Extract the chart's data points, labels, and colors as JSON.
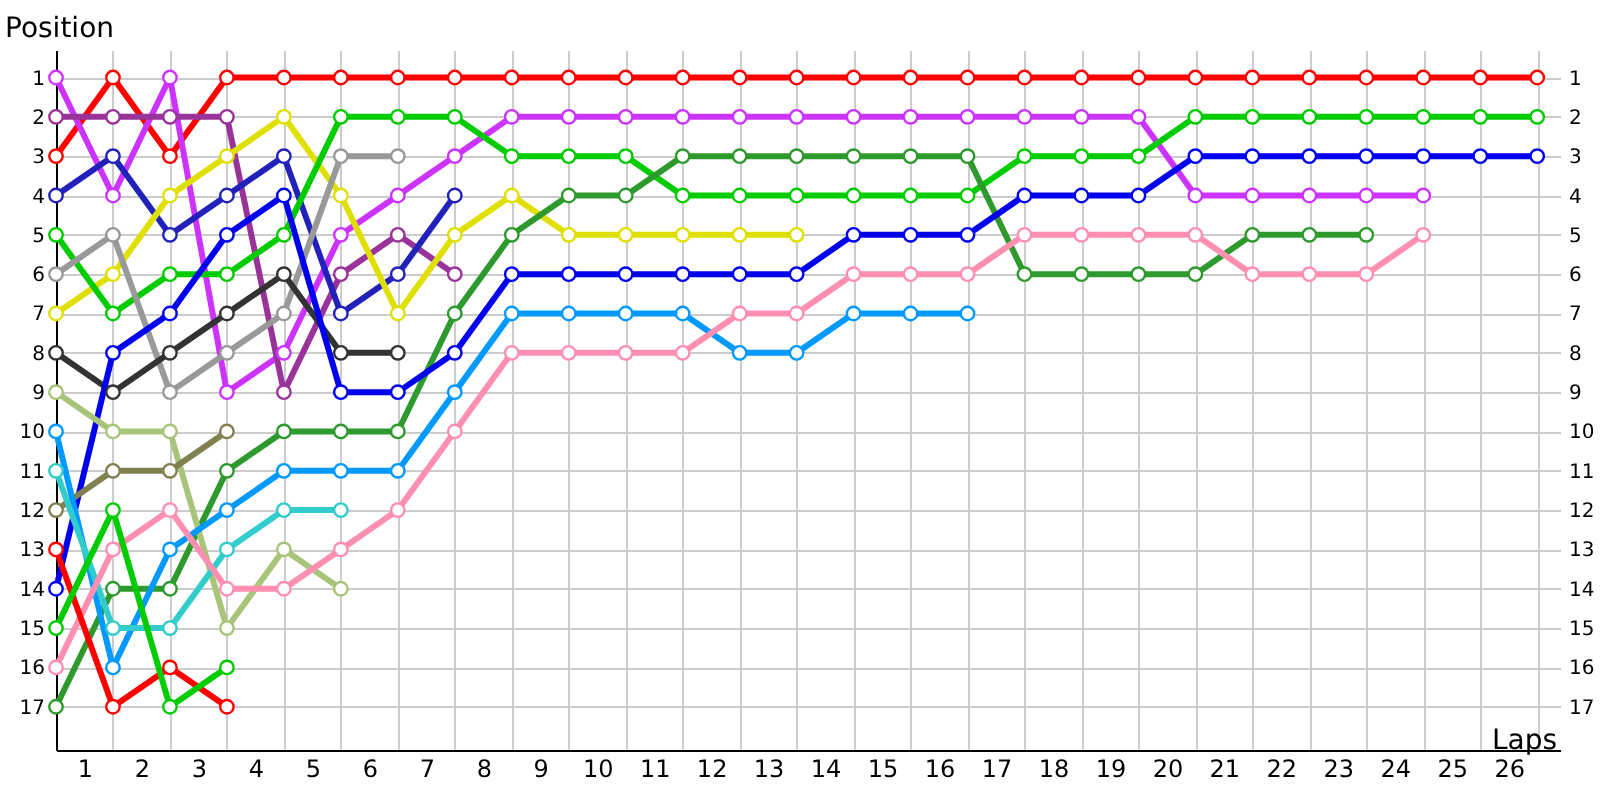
{
  "chart_data": {
    "type": "line",
    "xlabel": "Laps",
    "ylabel": "Position",
    "x": [
      0,
      1,
      2,
      3,
      4,
      5,
      6,
      7,
      8,
      9,
      10,
      11,
      12,
      13,
      14,
      15,
      16,
      17,
      18,
      19,
      20,
      21,
      22,
      23,
      24,
      25,
      26
    ],
    "xlim": [
      0,
      26.4
    ],
    "xticks": [
      {
        "value": 0,
        "label": null
      },
      {
        "value": 0.5,
        "label": "1"
      },
      {
        "value": 1,
        "label": null
      },
      {
        "value": 1.5,
        "label": "2"
      },
      {
        "value": 2,
        "label": null
      },
      {
        "value": 2.5,
        "label": "3"
      },
      {
        "value": 3,
        "label": null
      },
      {
        "value": 3.5,
        "label": "4"
      },
      {
        "value": 4,
        "label": null
      },
      {
        "value": 4.5,
        "label": "5"
      },
      {
        "value": 5,
        "label": null
      },
      {
        "value": 5.5,
        "label": "6"
      },
      {
        "value": 6,
        "label": null
      },
      {
        "value": 6.5,
        "label": "7"
      },
      {
        "value": 7,
        "label": null
      },
      {
        "value": 7.5,
        "label": "8"
      },
      {
        "value": 8,
        "label": null
      },
      {
        "value": 8.5,
        "label": "9"
      },
      {
        "value": 9,
        "label": null
      },
      {
        "value": 9.5,
        "label": "10"
      },
      {
        "value": 10,
        "label": null
      },
      {
        "value": 10.5,
        "label": "11"
      },
      {
        "value": 11,
        "label": null
      },
      {
        "value": 11.5,
        "label": "12"
      },
      {
        "value": 12,
        "label": null
      },
      {
        "value": 12.5,
        "label": "13"
      },
      {
        "value": 13,
        "label": null
      },
      {
        "value": 13.5,
        "label": "14"
      },
      {
        "value": 14,
        "label": null
      },
      {
        "value": 14.5,
        "label": "15"
      },
      {
        "value": 15,
        "label": null
      },
      {
        "value": 15.5,
        "label": "16"
      },
      {
        "value": 16,
        "label": null
      },
      {
        "value": 16.5,
        "label": "17"
      },
      {
        "value": 17,
        "label": null
      },
      {
        "value": 17.5,
        "label": "18"
      },
      {
        "value": 18,
        "label": null
      },
      {
        "value": 18.5,
        "label": "19"
      },
      {
        "value": 19,
        "label": null
      },
      {
        "value": 19.5,
        "label": "20"
      },
      {
        "value": 20,
        "label": null
      },
      {
        "value": 20.5,
        "label": "21"
      },
      {
        "value": 21,
        "label": null
      },
      {
        "value": 21.5,
        "label": "22"
      },
      {
        "value": 22,
        "label": null
      },
      {
        "value": 22.5,
        "label": "23"
      },
      {
        "value": 23,
        "label": null
      },
      {
        "value": 23.5,
        "label": "24"
      },
      {
        "value": 24,
        "label": null
      },
      {
        "value": 24.5,
        "label": "25"
      },
      {
        "value": 25,
        "label": null
      },
      {
        "value": 25.5,
        "label": "26"
      },
      {
        "value": 26,
        "label": null
      }
    ],
    "ylim": [
      18.1,
      0.3
    ],
    "yticks": [
      1,
      2,
      3,
      4,
      5,
      6,
      7,
      8,
      9,
      10,
      11,
      12,
      13,
      14,
      15,
      16,
      17
    ],
    "y2lim": [
      18.1,
      0.3
    ],
    "y2ticks": [
      1,
      2,
      3,
      4,
      5,
      6,
      7,
      8,
      9,
      10,
      11,
      12,
      13,
      14,
      15,
      16,
      17
    ],
    "grid": true,
    "legend": false,
    "marker": "circle",
    "line_style": "solid",
    "series": [
      {
        "color": "#ff0000",
        "values": [
          3,
          1,
          3,
          1,
          1,
          1,
          1,
          1,
          1,
          1,
          1,
          1,
          1,
          1,
          1,
          1,
          1,
          1,
          1,
          1,
          1,
          1,
          1,
          1,
          1,
          1,
          1
        ]
      },
      {
        "color": "#cc33ff",
        "values": [
          1,
          4,
          1,
          9,
          8,
          5,
          4,
          3,
          2,
          2,
          2,
          2,
          2,
          2,
          2,
          2,
          2,
          2,
          2,
          2,
          4,
          4,
          4,
          4,
          4,
          null,
          null
        ]
      },
      {
        "color": "#993399",
        "values": [
          2,
          2,
          2,
          2,
          9,
          6,
          5,
          6,
          null,
          null,
          null,
          null,
          null,
          null,
          null,
          null,
          null,
          null,
          null,
          null,
          null,
          null,
          null,
          null,
          null,
          null,
          null
        ]
      },
      {
        "color": "#2222bb",
        "values": [
          4,
          3,
          5,
          4,
          3,
          7,
          6,
          4,
          null,
          null,
          null,
          null,
          null,
          null,
          null,
          null,
          null,
          null,
          null,
          null,
          null,
          null,
          null,
          null,
          null,
          null,
          null
        ]
      },
      {
        "color": "#e0e000",
        "values": [
          7,
          6,
          4,
          3,
          2,
          4,
          7,
          5,
          4,
          5,
          5,
          5,
          5,
          5,
          null,
          null,
          null,
          null,
          null,
          null,
          null,
          null,
          null,
          null,
          null,
          null,
          null
        ]
      },
      {
        "color": "#00cc00",
        "values": [
          5,
          7,
          6,
          6,
          5,
          2,
          2,
          2,
          3,
          3,
          3,
          4,
          4,
          4,
          4,
          4,
          4,
          3,
          3,
          3,
          2,
          2,
          2,
          2,
          2,
          2,
          2
        ]
      },
      {
        "color": "#2e9a2e",
        "values": [
          17,
          14,
          14,
          11,
          10,
          10,
          10,
          7,
          5,
          4,
          4,
          3,
          3,
          3,
          3,
          3,
          3,
          6,
          6,
          6,
          6,
          5,
          5,
          5,
          null,
          null,
          null
        ]
      },
      {
        "color": "#999999",
        "values": [
          6,
          5,
          9,
          8,
          7,
          3,
          3,
          null,
          null,
          null,
          null,
          null,
          null,
          null,
          null,
          null,
          null,
          null,
          null,
          null,
          null,
          null,
          null,
          null,
          null,
          null,
          null
        ]
      },
      {
        "color": "#333333",
        "values": [
          8,
          9,
          8,
          7,
          6,
          8,
          8,
          null,
          null,
          null,
          null,
          null,
          null,
          null,
          null,
          null,
          null,
          null,
          null,
          null,
          null,
          null,
          null,
          null,
          null,
          null,
          null
        ]
      },
      {
        "color": "#0000ee",
        "values": [
          14,
          8,
          7,
          5,
          4,
          9,
          9,
          8,
          6,
          6,
          6,
          6,
          6,
          6,
          5,
          5,
          5,
          4,
          4,
          4,
          3,
          3,
          3,
          3,
          3,
          3,
          3
        ]
      },
      {
        "color": "#a8c47a",
        "values": [
          9,
          10,
          10,
          15,
          13,
          14,
          null,
          null,
          null,
          null,
          null,
          null,
          null,
          null,
          null,
          null,
          null,
          null,
          null,
          null,
          null,
          null,
          null,
          null,
          null,
          null,
          null
        ]
      },
      {
        "color": "#808050",
        "values": [
          12,
          11,
          11,
          10,
          null,
          null,
          null,
          null,
          null,
          null,
          null,
          null,
          null,
          null,
          null,
          null,
          null,
          null,
          null,
          null,
          null,
          null,
          null,
          null,
          null,
          null,
          null
        ]
      },
      {
        "color": "#0099ff",
        "values": [
          10,
          16,
          13,
          12,
          11,
          11,
          11,
          9,
          7,
          7,
          7,
          7,
          8,
          8,
          7,
          7,
          7,
          null,
          null,
          null,
          null,
          null,
          null,
          null,
          null,
          null,
          null
        ]
      },
      {
        "color": "#33cccc",
        "values": [
          11,
          15,
          15,
          13,
          12,
          12,
          null,
          null,
          null,
          null,
          null,
          null,
          null,
          null,
          null,
          null,
          null,
          null,
          null,
          null,
          null,
          null,
          null,
          null,
          null,
          null,
          null
        ]
      },
      {
        "color": "#ff8fb0",
        "values": [
          16,
          13,
          12,
          14,
          14,
          13,
          12,
          10,
          8,
          8,
          8,
          8,
          7,
          7,
          6,
          6,
          6,
          5,
          5,
          5,
          5,
          6,
          6,
          6,
          5,
          null,
          null
        ]
      },
      {
        "color": "#ff0000",
        "values": [
          13,
          17,
          16,
          17,
          null,
          null,
          null,
          null,
          null,
          null,
          null,
          null,
          null,
          null,
          null,
          null,
          null,
          null,
          null,
          null,
          null,
          null,
          null,
          null,
          null,
          null,
          null
        ]
      },
      {
        "color": "#00cc00",
        "values": [
          15,
          12,
          17,
          16,
          null,
          null,
          null,
          null,
          null,
          null,
          null,
          null,
          null,
          null,
          null,
          null,
          null,
          null,
          null,
          null,
          null,
          null,
          null,
          null,
          null,
          null,
          null
        ]
      }
    ]
  }
}
